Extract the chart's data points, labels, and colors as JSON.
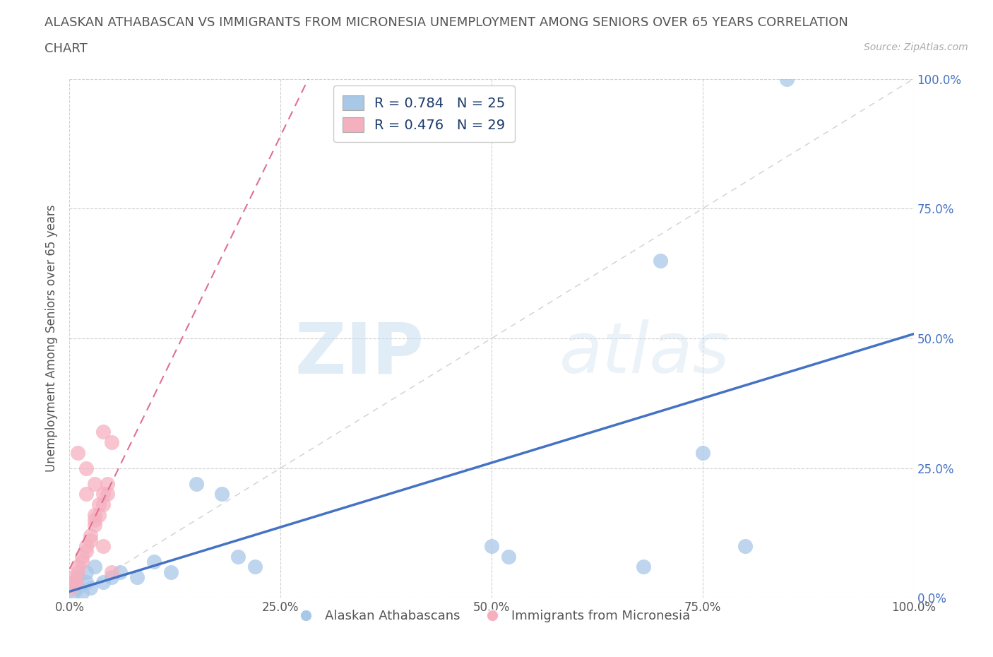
{
  "title_line1": "ALASKAN ATHABASCAN VS IMMIGRANTS FROM MICRONESIA UNEMPLOYMENT AMONG SENIORS OVER 65 YEARS CORRELATION",
  "title_line2": "CHART",
  "source": "Source: ZipAtlas.com",
  "ylabel": "Unemployment Among Seniors over 65 years",
  "xlim": [
    0,
    1
  ],
  "ylim": [
    0,
    1
  ],
  "xticks": [
    0.0,
    0.25,
    0.5,
    0.75,
    1.0
  ],
  "yticks": [
    0.0,
    0.25,
    0.5,
    0.75,
    1.0
  ],
  "xticklabels": [
    "0.0%",
    "25.0%",
    "50.0%",
    "75.0%",
    "100.0%"
  ],
  "yticklabels_right": [
    "0.0%",
    "25.0%",
    "50.0%",
    "75.0%",
    "100.0%"
  ],
  "blue_R": 0.784,
  "blue_N": 25,
  "pink_R": 0.476,
  "pink_N": 29,
  "blue_scatter_color": "#a8c8e8",
  "pink_scatter_color": "#f5b0c0",
  "blue_line_color": "#4472c4",
  "pink_line_color": "#e07090",
  "legend_label_blue": "Alaskan Athabascans",
  "legend_label_pink": "Immigrants from Micronesia",
  "blue_scatter_x": [
    0.005,
    0.01,
    0.015,
    0.02,
    0.025,
    0.01,
    0.02,
    0.03,
    0.04,
    0.05,
    0.06,
    0.08,
    0.1,
    0.12,
    0.15,
    0.18,
    0.2,
    0.22,
    0.5,
    0.52,
    0.75,
    0.8,
    0.85,
    0.7,
    0.68
  ],
  "blue_scatter_y": [
    0.01,
    0.02,
    0.01,
    0.03,
    0.02,
    0.04,
    0.05,
    0.06,
    0.03,
    0.04,
    0.05,
    0.04,
    0.07,
    0.05,
    0.22,
    0.2,
    0.08,
    0.06,
    0.1,
    0.08,
    0.28,
    0.1,
    1.0,
    0.65,
    0.06
  ],
  "pink_scatter_x": [
    0.002,
    0.005,
    0.008,
    0.01,
    0.015,
    0.02,
    0.025,
    0.03,
    0.035,
    0.04,
    0.045,
    0.005,
    0.01,
    0.015,
    0.02,
    0.025,
    0.03,
    0.035,
    0.04,
    0.045,
    0.05,
    0.01,
    0.02,
    0.03,
    0.04,
    0.02,
    0.03,
    0.04,
    0.05
  ],
  "pink_scatter_y": [
    0.02,
    0.04,
    0.03,
    0.06,
    0.08,
    0.1,
    0.12,
    0.14,
    0.16,
    0.18,
    0.2,
    0.03,
    0.05,
    0.07,
    0.09,
    0.11,
    0.16,
    0.18,
    0.2,
    0.22,
    0.3,
    0.28,
    0.25,
    0.22,
    0.32,
    0.2,
    0.15,
    0.1,
    0.05
  ],
  "watermark_zip": "ZIP",
  "watermark_atlas": "atlas",
  "background_color": "#ffffff",
  "grid_color": "#d0d0d0",
  "diagonal_color": "#d0d0d0",
  "text_color": "#555555",
  "tick_color": "#4472c4",
  "source_color": "#aaaaaa",
  "title_fontsize": 13,
  "legend_text_color": "#1a3a6a"
}
